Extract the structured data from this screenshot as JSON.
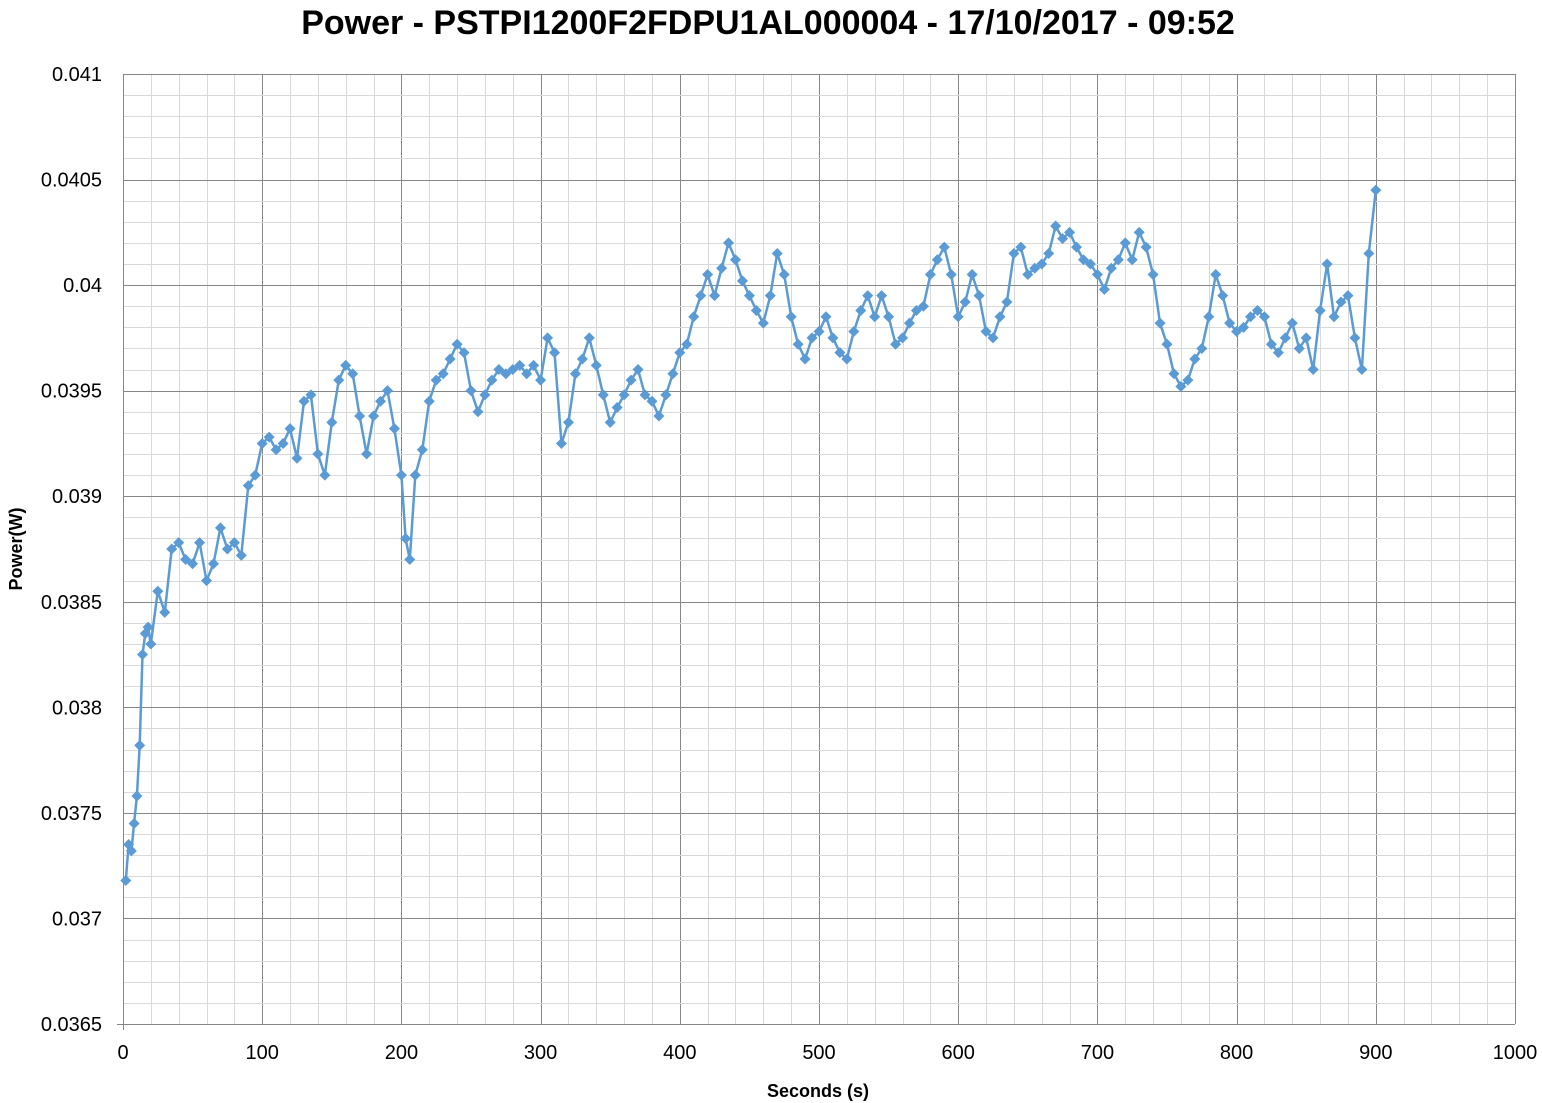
{
  "chart_data": {
    "type": "line",
    "title": "Power - PSTPI1200F2FDPU1AL000004 - 17/10/2017 - 09:52",
    "xlabel": "Seconds (s)",
    "ylabel": "Power(W)",
    "xlim": [
      0,
      1000
    ],
    "ylim": [
      0.0365,
      0.041
    ],
    "xticks": [
      "0",
      "100",
      "200",
      "300",
      "400",
      "500",
      "600",
      "700",
      "800",
      "900",
      "1000"
    ],
    "yticks": [
      "0.0365",
      "0.037",
      "0.0375",
      "0.038",
      "0.0385",
      "0.039",
      "0.0395",
      "0.04",
      "0.0405",
      "0.041"
    ],
    "grid": true,
    "legend": "none",
    "series": [
      {
        "color": "#5b9bd5",
        "marker": "diamond",
        "x": [
          2,
          4,
          6,
          8,
          10,
          12,
          14,
          16,
          18,
          20,
          25,
          30,
          35,
          40,
          45,
          50,
          55,
          60,
          65,
          70,
          75,
          80,
          85,
          90,
          95,
          100,
          105,
          110,
          115,
          120,
          125,
          130,
          135,
          140,
          145,
          150,
          155,
          160,
          165,
          170,
          175,
          180,
          185,
          190,
          195,
          200,
          203,
          206,
          210,
          215,
          220,
          225,
          230,
          235,
          240,
          245,
          250,
          255,
          260,
          265,
          270,
          275,
          280,
          285,
          290,
          295,
          300,
          305,
          310,
          315,
          320,
          325,
          330,
          335,
          340,
          345,
          350,
          355,
          360,
          365,
          370,
          375,
          380,
          385,
          390,
          395,
          400,
          405,
          410,
          415,
          420,
          425,
          430,
          435,
          440,
          445,
          450,
          455,
          460,
          465,
          470,
          475,
          480,
          485,
          490,
          495,
          500,
          505,
          510,
          515,
          520,
          525,
          530,
          535,
          540,
          545,
          550,
          555,
          560,
          565,
          570,
          575,
          580,
          585,
          590,
          595,
          600,
          605,
          610,
          615,
          620,
          625,
          630,
          635,
          640,
          645,
          650,
          655,
          660,
          665,
          670,
          675,
          680,
          685,
          690,
          695,
          700,
          705,
          710,
          715,
          720,
          725,
          730,
          735,
          740,
          745,
          750,
          755,
          760,
          765,
          770,
          775,
          780,
          785,
          790,
          795,
          800,
          805,
          810,
          815,
          820,
          825,
          830,
          835,
          840,
          845,
          850,
          855,
          860,
          865,
          870,
          875,
          880,
          885,
          890,
          895,
          900
        ],
        "y": [
          0.03718,
          0.03735,
          0.03732,
          0.03745,
          0.03758,
          0.03782,
          0.03825,
          0.03835,
          0.03838,
          0.0383,
          0.03855,
          0.03845,
          0.03875,
          0.03878,
          0.0387,
          0.03868,
          0.03878,
          0.0386,
          0.03868,
          0.03885,
          0.03875,
          0.03878,
          0.03872,
          0.03905,
          0.0391,
          0.03925,
          0.03928,
          0.03922,
          0.03925,
          0.03932,
          0.03918,
          0.03945,
          0.03948,
          0.0392,
          0.0391,
          0.03935,
          0.03955,
          0.03962,
          0.03958,
          0.03938,
          0.0392,
          0.03938,
          0.03945,
          0.0395,
          0.03932,
          0.0391,
          0.0388,
          0.0387,
          0.0391,
          0.03922,
          0.03945,
          0.03955,
          0.03958,
          0.03965,
          0.03972,
          0.03968,
          0.0395,
          0.0394,
          0.03948,
          0.03955,
          0.0396,
          0.03958,
          0.0396,
          0.03962,
          0.03958,
          0.03962,
          0.03955,
          0.03975,
          0.03968,
          0.03925,
          0.03935,
          0.03958,
          0.03965,
          0.03975,
          0.03962,
          0.03948,
          0.03935,
          0.03942,
          0.03948,
          0.03955,
          0.0396,
          0.03948,
          0.03945,
          0.03938,
          0.03948,
          0.03958,
          0.03968,
          0.03972,
          0.03985,
          0.03995,
          0.04005,
          0.03995,
          0.04008,
          0.0402,
          0.04012,
          0.04002,
          0.03995,
          0.03988,
          0.03982,
          0.03995,
          0.04015,
          0.04005,
          0.03985,
          0.03972,
          0.03965,
          0.03975,
          0.03978,
          0.03985,
          0.03975,
          0.03968,
          0.03965,
          0.03978,
          0.03988,
          0.03995,
          0.03985,
          0.03995,
          0.03985,
          0.03972,
          0.03975,
          0.03982,
          0.03988,
          0.0399,
          0.04005,
          0.04012,
          0.04018,
          0.04005,
          0.03985,
          0.03992,
          0.04005,
          0.03995,
          0.03978,
          0.03975,
          0.03985,
          0.03992,
          0.04015,
          0.04018,
          0.04005,
          0.04008,
          0.0401,
          0.04015,
          0.04028,
          0.04022,
          0.04025,
          0.04018,
          0.04012,
          0.0401,
          0.04005,
          0.03998,
          0.04008,
          0.04012,
          0.0402,
          0.04012,
          0.04025,
          0.04018,
          0.04005,
          0.03982,
          0.03972,
          0.03958,
          0.03952,
          0.03955,
          0.03965,
          0.0397,
          0.03985,
          0.04005,
          0.03995,
          0.03982,
          0.03978,
          0.0398,
          0.03985,
          0.03988,
          0.03985,
          0.03972,
          0.03968,
          0.03975,
          0.03982,
          0.0397,
          0.03975,
          0.0396,
          0.03988,
          0.0401,
          0.03985,
          0.03992,
          0.03995,
          0.03975,
          0.0396,
          0.04015,
          0.04045
        ]
      }
    ]
  }
}
